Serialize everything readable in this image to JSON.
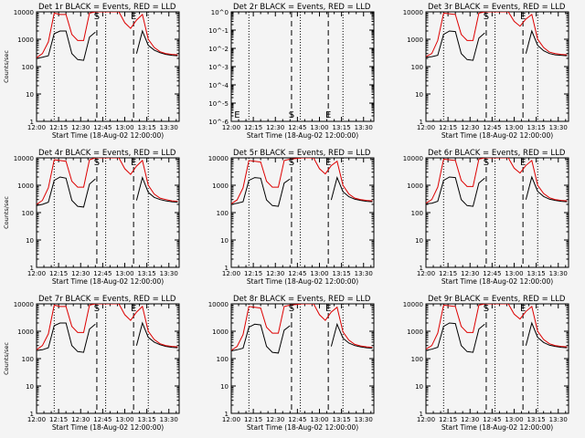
{
  "chart_data": {
    "type": "line",
    "x_ticks": [
      "12:00",
      "12:15",
      "12:30",
      "12:45",
      "13:00",
      "13:15",
      "13:30"
    ],
    "xlim": [
      "12:00",
      "13:37"
    ],
    "y_scale": "log",
    "ylim": [
      1,
      10000
    ],
    "y_tick_labels": [
      "1",
      "10",
      "100",
      "1000",
      "10000"
    ],
    "xlabel": "Start Time (18-Aug-02 12:00:00)",
    "ylabel": "Counts/sec",
    "line_colors": {
      "events": "#000000",
      "lld": "#dd0000"
    },
    "x_dotted_lines": [
      "12:12",
      "12:47",
      "13:16"
    ],
    "x_dashed_lines": [
      "12:41",
      "13:06"
    ],
    "time_axis": [
      "12:00",
      "12:04",
      "12:08",
      "12:12",
      "12:16",
      "12:20",
      "12:24",
      "12:28",
      "12:32",
      "12:36",
      "12:40",
      "12:44",
      "12:48",
      "12:52",
      "12:56",
      "13:00",
      "13:04",
      "13:08",
      "13:12",
      "13:16",
      "13:20",
      "13:24",
      "13:28",
      "13:32",
      "13:36"
    ],
    "panels": [
      {
        "title": "Det 1r BLACK = Events, RED = LLD",
        "markers": [
          {
            "label": "S",
            "time": "12:41"
          },
          {
            "label": "E",
            "time": "13:06"
          }
        ],
        "series": [
          {
            "name": "Events",
            "values": [
              200,
              220,
              250,
              1600,
              2000,
              2000,
              300,
              180,
              170,
              1200,
              1800,
              0,
              0,
              0,
              0,
              0,
              0,
              300,
              2000,
              600,
              400,
              320,
              280,
              260,
              250
            ]
          },
          {
            "name": "LLD",
            "values": [
              210,
              300,
              800,
              9000,
              8000,
              8000,
              1500,
              900,
              900,
              9000,
              10000,
              10000,
              10000,
              10000,
              10000,
              4000,
              2500,
              5000,
              8000,
              1000,
              500,
              350,
              300,
              280,
              270
            ]
          }
        ]
      },
      {
        "title": "Det 2r BLACK = Events, RED = LLD",
        "y_tick_labels": [
          "10^0",
          "10^-1",
          "10^-2",
          "10^-3",
          "10^-4",
          "10^-5",
          "10^-6"
        ],
        "markers": [
          {
            "label": "E",
            "time": "12:04"
          },
          {
            "label": "S",
            "time": "12:41"
          },
          {
            "label": "E",
            "time": "13:06"
          }
        ],
        "series": []
      },
      {
        "title": "Det 3r BLACK = Events, RED = LLD",
        "markers": [
          {
            "label": "S",
            "time": "12:41"
          },
          {
            "label": "E",
            "time": "13:06"
          }
        ],
        "series": [
          {
            "name": "Events",
            "values": [
              220,
              230,
              260,
              1500,
              2000,
              1900,
              300,
              180,
              170,
              1100,
              1700,
              0,
              0,
              0,
              0,
              0,
              0,
              300,
              2000,
              600,
              380,
              300,
              270,
              260,
              250
            ]
          },
          {
            "name": "LLD",
            "values": [
              230,
              300,
              900,
              9000,
              8500,
              8000,
              1500,
              900,
              900,
              9000,
              10000,
              10000,
              10000,
              10000,
              10000,
              4500,
              3000,
              5500,
              8000,
              1000,
              500,
              340,
              300,
              280,
              270
            ]
          }
        ]
      },
      {
        "title": "Det 4r BLACK = Events, RED = LLD",
        "markers": [
          {
            "label": "S",
            "time": "12:41"
          },
          {
            "label": "E",
            "time": "13:06"
          }
        ],
        "series": [
          {
            "name": "Events",
            "values": [
              180,
              200,
              240,
              1500,
              2000,
              1800,
              280,
              170,
              160,
              1100,
              1700,
              0,
              0,
              0,
              0,
              0,
              0,
              280,
              1900,
              550,
              360,
              300,
              270,
              250,
              240
            ]
          },
          {
            "name": "LLD",
            "values": [
              200,
              280,
              800,
              8500,
              8000,
              7500,
              1400,
              850,
              850,
              8500,
              10000,
              10000,
              10000,
              10000,
              10000,
              4000,
              2500,
              5000,
              8000,
              1000,
              480,
              340,
              300,
              270,
              260
            ]
          }
        ]
      },
      {
        "title": "Det 5r BLACK = Events, RED = LLD",
        "markers": [
          {
            "label": "S",
            "time": "12:41"
          },
          {
            "label": "E",
            "time": "13:06"
          }
        ],
        "series": [
          {
            "name": "Events",
            "values": [
              200,
              220,
              250,
              1500,
              1900,
              1800,
              290,
              180,
              170,
              1200,
              1700,
              0,
              0,
              0,
              0,
              0,
              0,
              290,
              1900,
              580,
              380,
              310,
              280,
              260,
              250
            ]
          },
          {
            "name": "LLD",
            "values": [
              210,
              290,
              800,
              8000,
              7500,
              7000,
              1400,
              850,
              850,
              8000,
              9000,
              9500,
              10000,
              10000,
              10000,
              4000,
              2600,
              5200,
              7500,
              1000,
              480,
              340,
              300,
              280,
              270
            ]
          }
        ]
      },
      {
        "title": "Det 6r BLACK = Events, RED = LLD",
        "markers": [
          {
            "label": "S",
            "time": "12:41"
          },
          {
            "label": "E",
            "time": "13:06"
          }
        ],
        "series": [
          {
            "name": "Events",
            "values": [
              210,
              220,
              260,
              1500,
              2000,
              1900,
              300,
              180,
              170,
              1200,
              1800,
              0,
              0,
              0,
              0,
              0,
              0,
              300,
              2000,
              600,
              390,
              310,
              280,
              260,
              250
            ]
          },
          {
            "name": "LLD",
            "values": [
              220,
              300,
              850,
              9000,
              8500,
              8000,
              1500,
              900,
              900,
              9000,
              10000,
              10000,
              10000,
              10000,
              10000,
              4200,
              2800,
              5300,
              8000,
              1000,
              500,
              350,
              300,
              280,
              270
            ]
          }
        ]
      },
      {
        "title": "Det 7r BLACK = Events, RED = LLD",
        "markers": [
          {
            "label": "S",
            "time": "12:41"
          },
          {
            "label": "E",
            "time": "13:06"
          }
        ],
        "series": [
          {
            "name": "Events",
            "values": [
              200,
              210,
              250,
              1600,
              2000,
              2000,
              300,
              180,
              170,
              1200,
              1800,
              0,
              0,
              0,
              0,
              0,
              0,
              300,
              2000,
              600,
              400,
              320,
              280,
              260,
              250
            ]
          },
          {
            "name": "LLD",
            "values": [
              210,
              300,
              800,
              9000,
              8000,
              8000,
              1500,
              900,
              900,
              9000,
              10000,
              10000,
              10000,
              10000,
              10000,
              4000,
              2500,
              5000,
              8000,
              1000,
              500,
              350,
              300,
              280,
              270
            ]
          }
        ]
      },
      {
        "title": "Det 8r BLACK = Events, RED = LLD",
        "markers": [
          {
            "label": "S",
            "time": "12:41"
          },
          {
            "label": "E",
            "time": "13:06"
          }
        ],
        "series": [
          {
            "name": "Events",
            "values": [
              190,
              210,
              240,
              1400,
              1800,
              1700,
              280,
              170,
              160,
              1100,
              1600,
              0,
              0,
              0,
              0,
              0,
              0,
              280,
              1800,
              560,
              370,
              300,
              270,
              250,
              240
            ]
          },
          {
            "name": "LLD",
            "values": [
              200,
              280,
              750,
              8000,
              7500,
              7000,
              1400,
              850,
              850,
              8000,
              9000,
              9500,
              10000,
              10000,
              10000,
              4000,
              2500,
              5000,
              7500,
              950,
              470,
              330,
              290,
              270,
              260
            ]
          }
        ]
      },
      {
        "title": "Det 9r BLACK = Events, RED = LLD",
        "markers": [
          {
            "label": "S",
            "time": "12:41"
          },
          {
            "label": "E",
            "time": "13:06"
          }
        ],
        "series": [
          {
            "name": "Events",
            "values": [
              200,
              220,
              260,
              1500,
              2000,
              1900,
              300,
              180,
              170,
              1200,
              1800,
              0,
              0,
              0,
              0,
              0,
              0,
              300,
              2000,
              600,
              390,
              310,
              280,
              260,
              250
            ]
          },
          {
            "name": "LLD",
            "values": [
              220,
              300,
              850,
              9000,
              8500,
              8000,
              1500,
              900,
              900,
              9000,
              10000,
              10000,
              10000,
              10000,
              10000,
              4200,
              2800,
              5300,
              8000,
              1000,
              500,
              350,
              300,
              280,
              270
            ]
          }
        ]
      }
    ]
  }
}
